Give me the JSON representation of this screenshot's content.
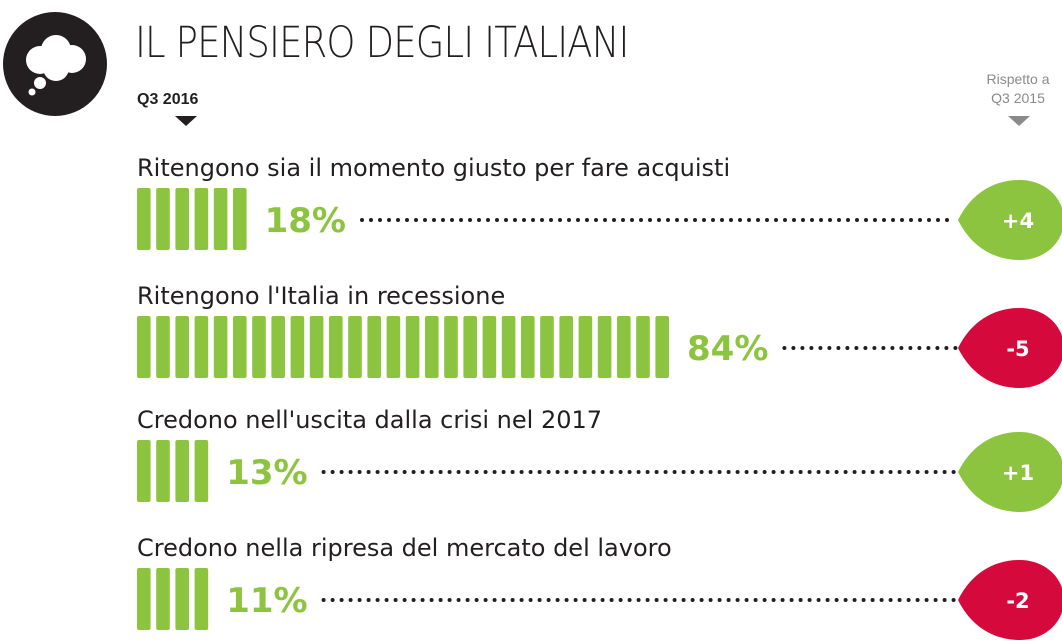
{
  "header": {
    "title": "IL PENSIERO DEGLI ITALIANI",
    "period": "Q3 2016",
    "comparison_line1": "Rispetto a",
    "comparison_line2": "Q3 2015"
  },
  "icons": {
    "logo": "thought-bubble-icon"
  },
  "colors": {
    "bar": "#8cc43f",
    "positive": "#8cc43f",
    "negative": "#d6093d",
    "text": "#231f20",
    "muted": "#8a8a8a",
    "dots": "#231f20"
  },
  "chart_data": {
    "type": "bar",
    "orientation": "horizontal",
    "unit": "%",
    "categories": [
      "Ritengono sia il momento giusto per fare acquisti",
      "Ritengono l'Italia in recessione",
      "Credono nell'uscita dalla crisi nel 2017",
      "Credono nella ripresa del mercato del lavoro"
    ],
    "series": [
      {
        "name": "Q3 2016",
        "values": [
          18,
          84,
          13,
          11
        ]
      },
      {
        "name": "Rispetto a Q3 2015",
        "values": [
          4,
          -5,
          1,
          -2
        ]
      }
    ],
    "value_labels": [
      "18%",
      "84%",
      "13%",
      "11%"
    ],
    "delta_labels": [
      "+4",
      "-5",
      "+1",
      "-2"
    ]
  }
}
